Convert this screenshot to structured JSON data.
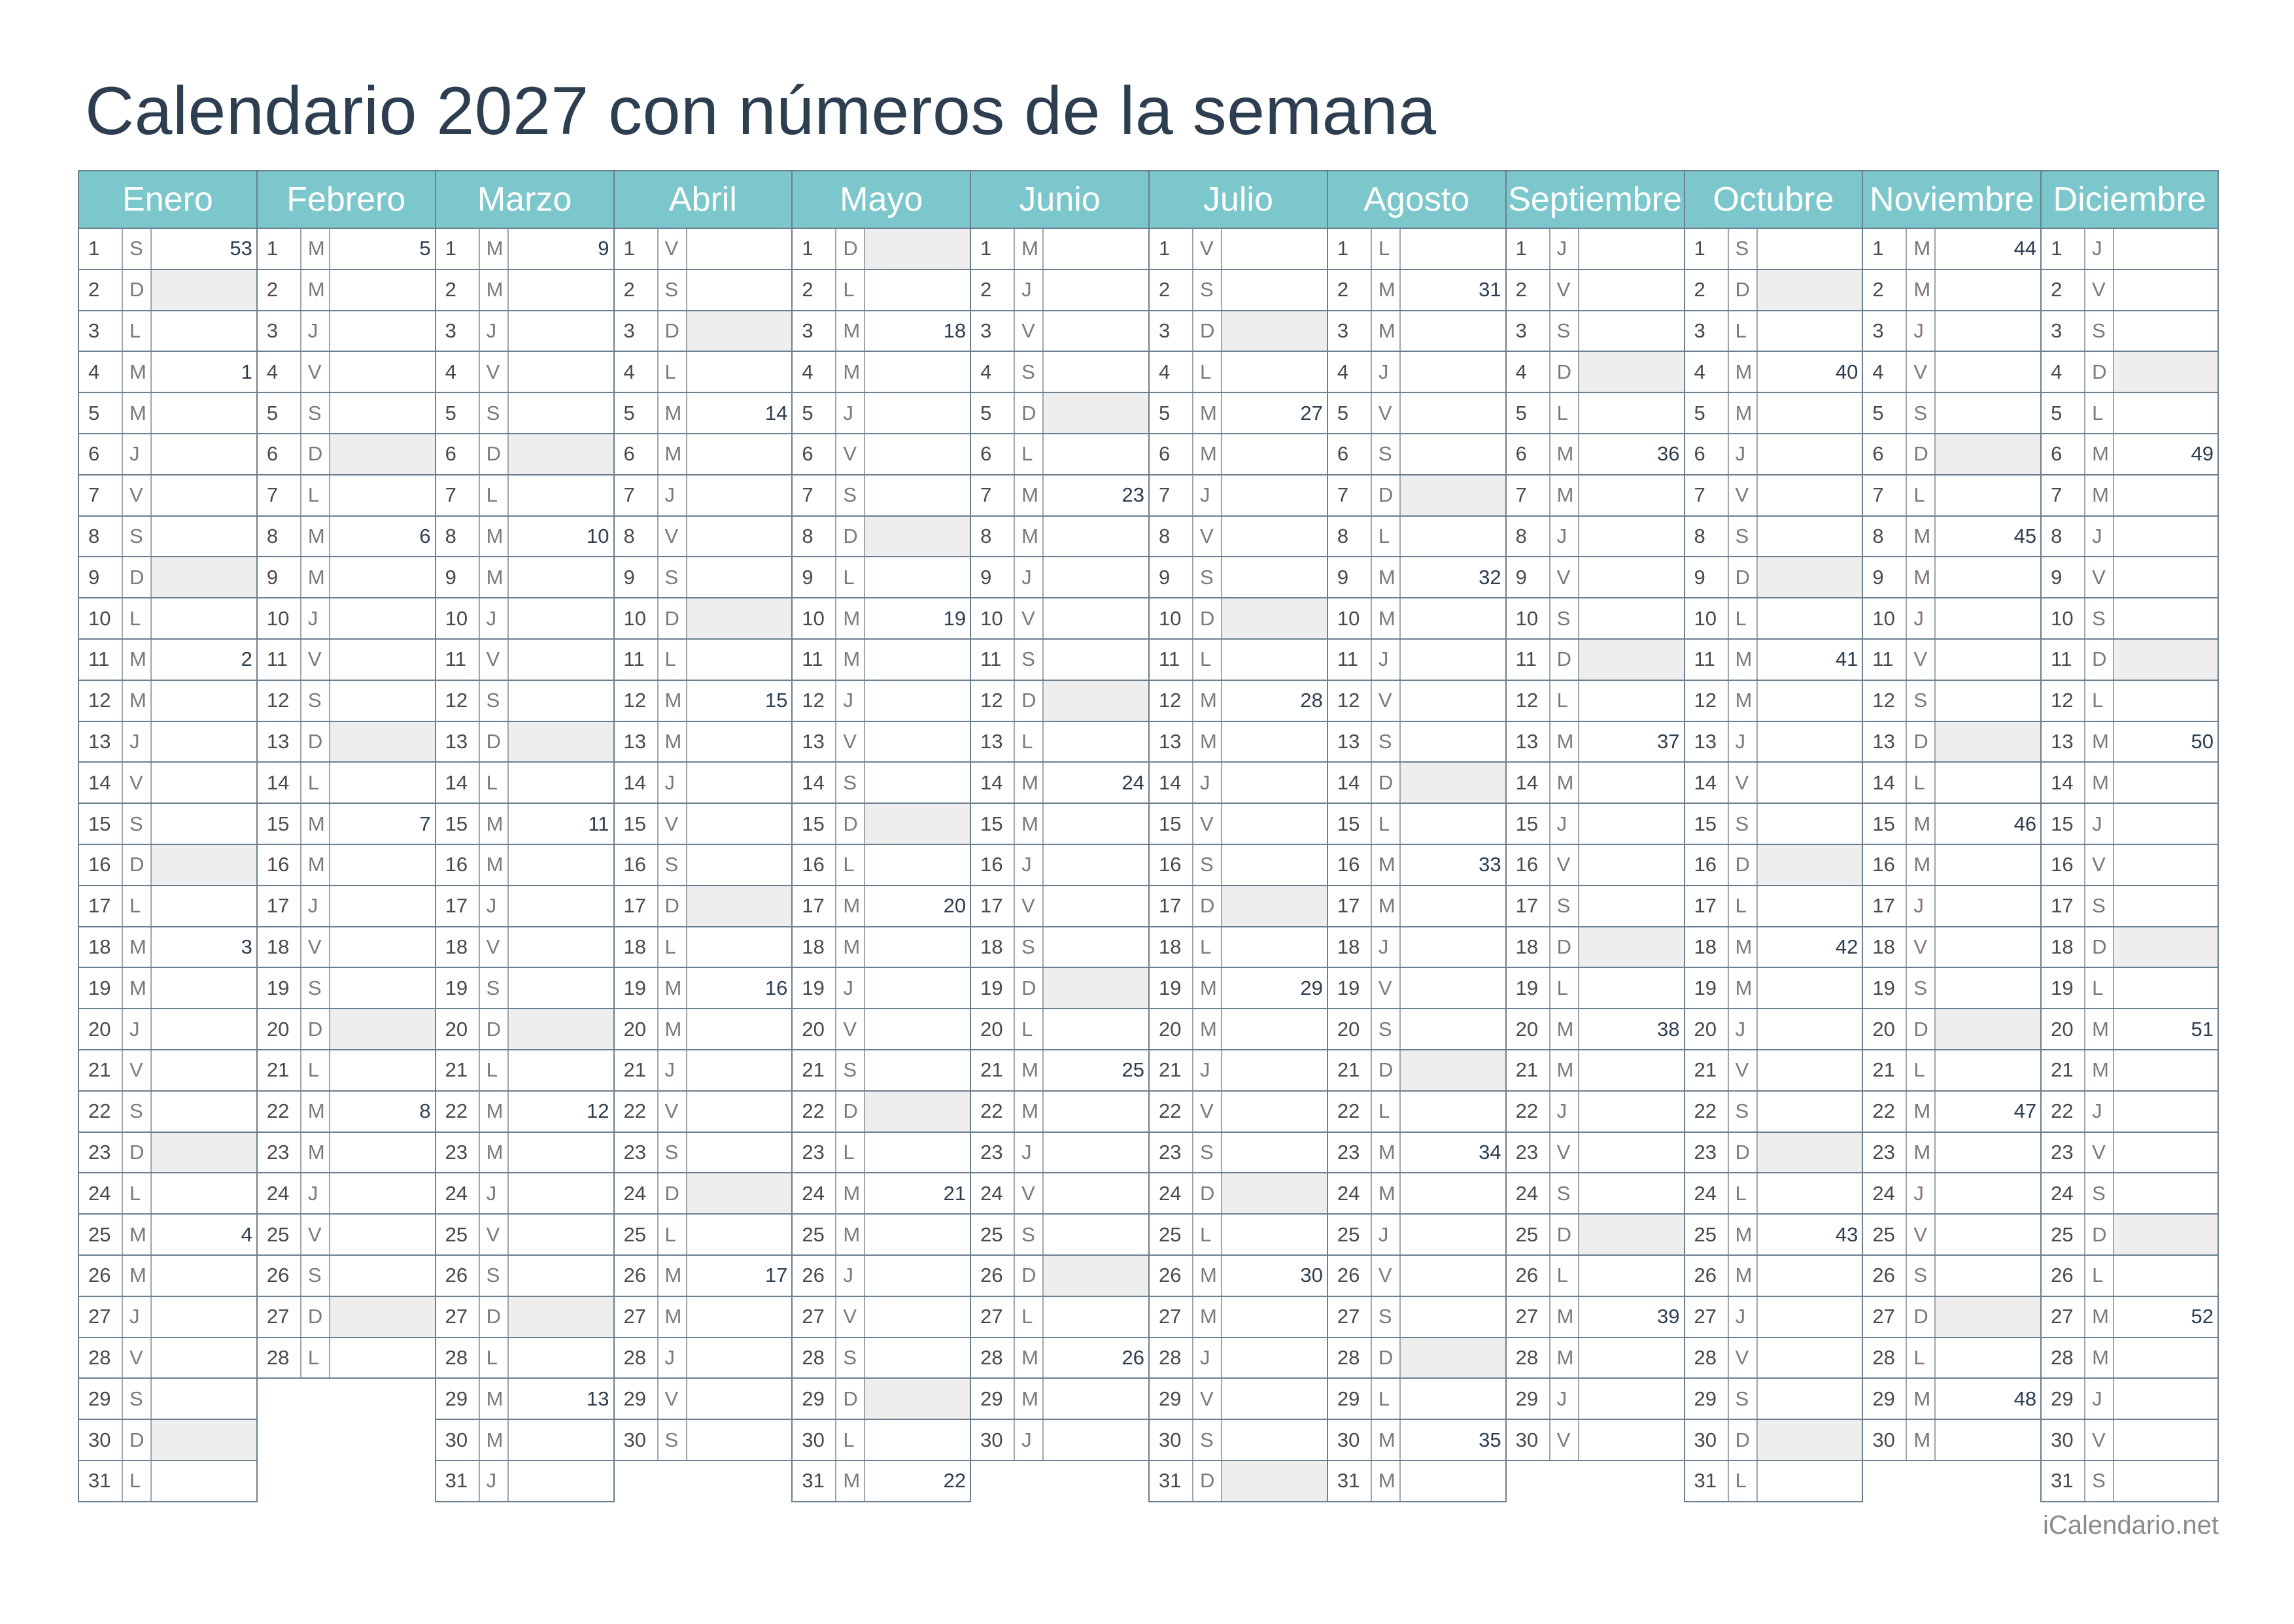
{
  "title": "Calendario 2027 con números de la semana",
  "footer": "iCalendario.net",
  "colors": {
    "header_bg": "#7cc7cc",
    "header_text": "#ffffff",
    "title": "#2c3e50",
    "sunday_shade": "#eeeeee",
    "grid": "#6a7f8f"
  },
  "year_start_weekday_index": 5,
  "day_letters": [
    "L",
    "M",
    "M",
    "J",
    "V",
    "S",
    "D"
  ],
  "months": [
    {
      "name": "Enero",
      "days": 31,
      "week_numbers": {
        "1": "53",
        "4": "1",
        "11": "2",
        "18": "3",
        "25": "4"
      }
    },
    {
      "name": "Febrero",
      "days": 28,
      "week_numbers": {
        "1": "5",
        "8": "6",
        "15": "7",
        "22": "8"
      }
    },
    {
      "name": "Marzo",
      "days": 31,
      "week_numbers": {
        "1": "9",
        "8": "10",
        "15": "11",
        "22": "12",
        "29": "13"
      }
    },
    {
      "name": "Abril",
      "days": 30,
      "week_numbers": {
        "5": "14",
        "12": "15",
        "19": "16",
        "26": "17"
      }
    },
    {
      "name": "Mayo",
      "days": 31,
      "week_numbers": {
        "3": "18",
        "10": "19",
        "17": "20",
        "24": "21",
        "31": "22"
      }
    },
    {
      "name": "Junio",
      "days": 30,
      "week_numbers": {
        "7": "23",
        "14": "24",
        "21": "25",
        "28": "26"
      }
    },
    {
      "name": "Julio",
      "days": 31,
      "week_numbers": {
        "5": "27",
        "12": "28",
        "19": "29",
        "26": "30"
      }
    },
    {
      "name": "Agosto",
      "days": 31,
      "week_numbers": {
        "2": "31",
        "9": "32",
        "16": "33",
        "23": "34",
        "30": "35"
      }
    },
    {
      "name": "Septiembre",
      "days": 30,
      "week_numbers": {
        "6": "36",
        "13": "37",
        "20": "38",
        "27": "39"
      }
    },
    {
      "name": "Octubre",
      "days": 31,
      "week_numbers": {
        "4": "40",
        "11": "41",
        "18": "42",
        "25": "43"
      }
    },
    {
      "name": "Noviembre",
      "days": 30,
      "week_numbers": {
        "1": "44",
        "8": "45",
        "15": "46",
        "22": "47",
        "29": "48"
      }
    },
    {
      "name": "Diciembre",
      "days": 31,
      "week_numbers": {
        "6": "49",
        "13": "50",
        "20": "51",
        "27": "52"
      }
    }
  ]
}
